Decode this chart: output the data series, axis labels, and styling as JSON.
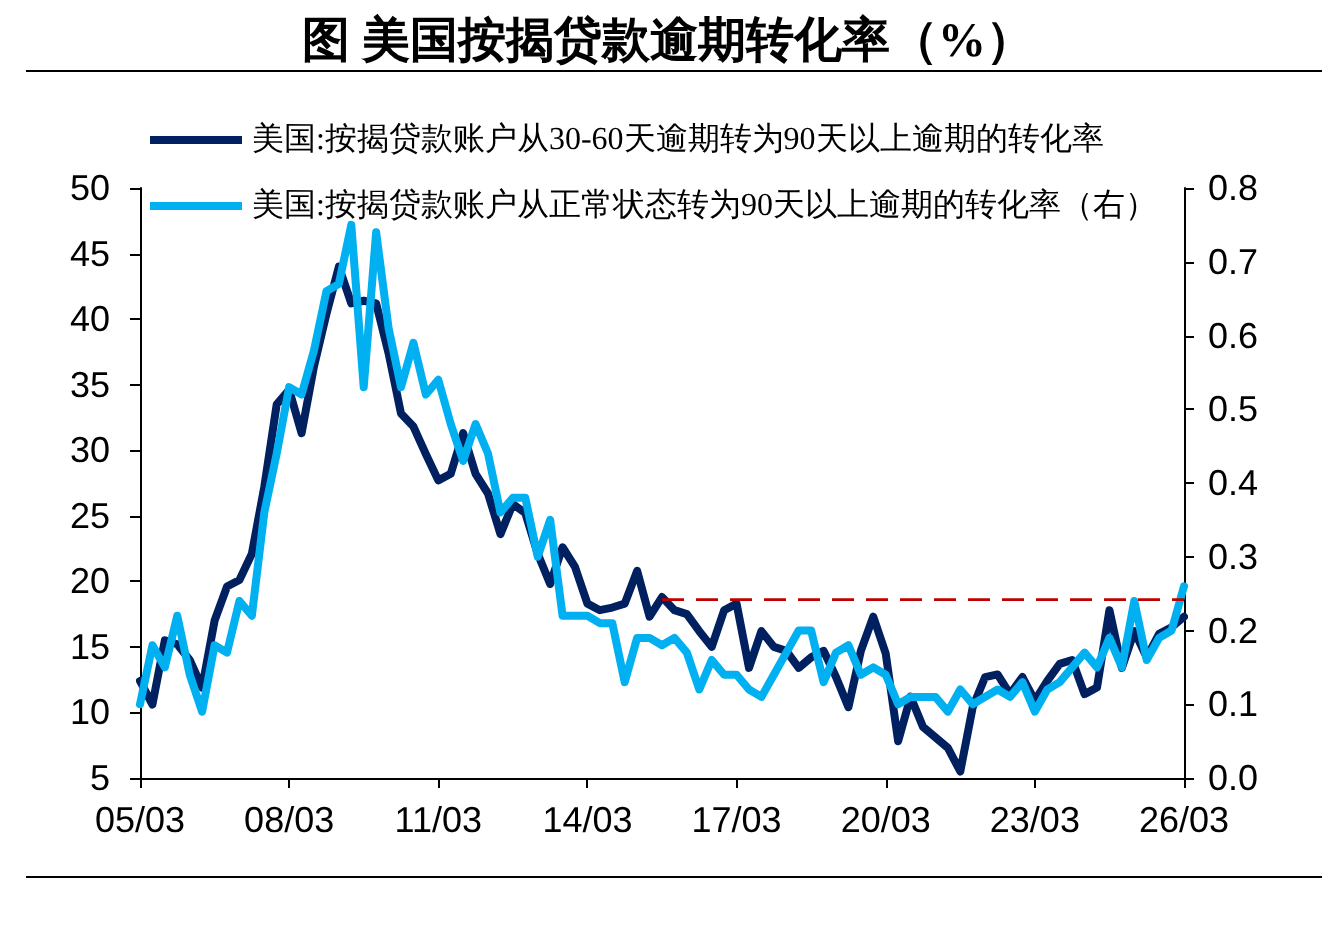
{
  "chart_data": {
    "type": "line",
    "title": "图 美国按揭贷款逾期转化率（%）",
    "categories": [
      "05/03",
      null,
      null,
      null,
      null,
      null,
      null,
      null,
      null,
      null,
      null,
      null,
      "08/03",
      null,
      null,
      null,
      null,
      null,
      null,
      null,
      null,
      null,
      null,
      null,
      "11/03",
      null,
      null,
      null,
      null,
      null,
      null,
      null,
      null,
      null,
      null,
      null,
      "14/03",
      null,
      null,
      null,
      null,
      null,
      null,
      null,
      null,
      null,
      null,
      null,
      "17/03",
      null,
      null,
      null,
      null,
      null,
      null,
      null,
      null,
      null,
      null,
      null,
      "20/03",
      null,
      null,
      null,
      null,
      null,
      null,
      null,
      null,
      null,
      null,
      null,
      "23/03",
      null,
      null,
      null,
      null,
      null,
      null,
      null,
      null,
      null,
      null,
      null,
      "26/03"
    ],
    "series": [
      {
        "name": "美国:按揭贷款账户从30-60天逾期转为90天以上逾期的转化率",
        "color": "#002060",
        "values": [
          12.4,
          10.6,
          15.5,
          15.2,
          14.0,
          11.9,
          17.0,
          19.6,
          20.1,
          22.1,
          27.2,
          33.5,
          34.6,
          31.3,
          36.4,
          40.4,
          44.0,
          41.2,
          41.4,
          41.2,
          37.4,
          32.8,
          31.8,
          29.7,
          27.7,
          28.2,
          31.3,
          28.2,
          26.7,
          23.6,
          25.9,
          25.2,
          22.1,
          19.8,
          22.6,
          21.1,
          18.3,
          17.8,
          18.0,
          18.3,
          20.8,
          17.3,
          18.8,
          17.8,
          17.5,
          16.2,
          15.0,
          17.8,
          18.3,
          13.4,
          16.2,
          15.0,
          14.7,
          13.4,
          14.2,
          14.7,
          12.7,
          10.4,
          14.7,
          17.3,
          14.5,
          7.8,
          11.2,
          8.9,
          8.1,
          7.3,
          5.5,
          10.4,
          12.7,
          12.9,
          11.4,
          12.7,
          10.9,
          12.4,
          13.7,
          14.0,
          11.4,
          11.9,
          17.8,
          13.4,
          16.2,
          14.2,
          16.0,
          16.5,
          17.3
        ]
      },
      {
        "name": "美国:按揭贷款账户从正常状态转为90天以上逾期的转化率（右）",
        "color": "#00b0f0",
        "axis": "y2",
        "values": [
          0.1,
          0.18,
          0.15,
          0.22,
          0.14,
          0.09,
          0.18,
          0.17,
          0.24,
          0.22,
          0.36,
          0.44,
          0.53,
          0.52,
          0.58,
          0.66,
          0.67,
          0.75,
          0.53,
          0.74,
          0.61,
          0.53,
          0.59,
          0.52,
          0.54,
          0.48,
          0.43,
          0.48,
          0.44,
          0.36,
          0.38,
          0.38,
          0.3,
          0.35,
          0.22,
          0.22,
          0.22,
          0.21,
          0.21,
          0.13,
          0.19,
          0.19,
          0.18,
          0.19,
          0.17,
          0.12,
          0.16,
          0.14,
          0.14,
          0.12,
          0.11,
          0.14,
          0.17,
          0.2,
          0.2,
          0.13,
          0.17,
          0.18,
          0.14,
          0.15,
          0.14,
          0.1,
          0.11,
          0.11,
          0.11,
          0.09,
          0.12,
          0.1,
          0.11,
          0.12,
          0.11,
          0.13,
          0.09,
          0.12,
          0.13,
          0.15,
          0.17,
          0.15,
          0.19,
          0.15,
          0.24,
          0.16,
          0.19,
          0.2,
          0.26
        ]
      },
      {
        "color": "#c00000",
        "line_style": "dashed",
        "values": [
          null,
          null,
          null,
          null,
          null,
          null,
          null,
          null,
          null,
          null,
          null,
          null,
          null,
          null,
          null,
          null,
          null,
          null,
          null,
          null,
          null,
          null,
          null,
          null,
          null,
          null,
          null,
          null,
          null,
          null,
          null,
          null,
          null,
          null,
          null,
          null,
          null,
          null,
          null,
          null,
          null,
          null,
          18.6,
          18.6,
          18.6,
          18.6,
          18.6,
          18.6,
          18.6,
          18.6,
          18.6,
          18.6,
          18.6,
          18.6,
          18.6,
          18.6,
          18.6,
          18.6,
          18.6,
          18.6,
          18.6,
          18.6,
          18.6,
          18.6,
          18.6,
          18.6,
          18.6,
          18.6,
          18.6,
          18.6,
          18.6,
          18.6,
          18.6,
          18.6,
          18.6,
          18.6,
          18.6,
          18.6,
          18.6,
          18.6,
          18.6,
          18.6,
          18.6,
          18.6,
          18.6
        ]
      }
    ],
    "ylim": [
      5,
      50
    ],
    "yticks": [
      5,
      10,
      15,
      20,
      25,
      30,
      35,
      40,
      45,
      50
    ],
    "y2lim": [
      0,
      0.8
    ],
    "y2ticks": [
      {
        "value": 0,
        "label": "0.0"
      },
      0.1,
      0.2,
      0.3,
      0.4,
      0.5,
      0.6,
      0.7,
      0.8
    ],
    "legend": "top left",
    "marker": "none",
    "line_style": "solid"
  }
}
